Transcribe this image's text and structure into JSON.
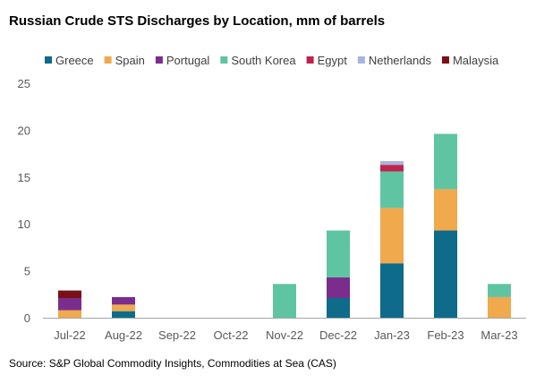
{
  "colors": {
    "Greece": "#0e6b8a",
    "Spain": "#f0a94d",
    "Portugal": "#7b2d8e",
    "South Korea": "#5fc4a2",
    "Egypt": "#c1234f",
    "Netherlands": "#a9b3dd",
    "Malaysia": "#7a1016",
    "axis": "#a6a6a6",
    "text": "#595959"
  },
  "chart_data": {
    "type": "bar",
    "stacked": true,
    "title": "Russian Crude STS Discharges by Location, mm of barrels",
    "xlabel": "",
    "ylabel": "",
    "ylim": [
      0,
      25
    ],
    "yticks": [
      0,
      5,
      10,
      15,
      20,
      25
    ],
    "grid": false,
    "legend_position": "top",
    "categories": [
      "Jul-22",
      "Aug-22",
      "Sep-22",
      "Oct-22",
      "Nov-22",
      "Dec-22",
      "Jan-23",
      "Feb-23",
      "Mar-23"
    ],
    "series": [
      {
        "name": "Greece",
        "values": [
          0,
          0.7,
          0,
          0,
          0,
          2.1,
          5.8,
          9.3,
          0
        ]
      },
      {
        "name": "Spain",
        "values": [
          0.8,
          0.7,
          0,
          0,
          0,
          0,
          5.9,
          4.4,
          2.2
        ]
      },
      {
        "name": "Portugal",
        "values": [
          1.3,
          0.8,
          0,
          0,
          0,
          2.2,
          0,
          0,
          0
        ]
      },
      {
        "name": "South Korea",
        "values": [
          0,
          0,
          0,
          0,
          3.6,
          5.0,
          3.9,
          5.9,
          1.4
        ]
      },
      {
        "name": "Egypt",
        "values": [
          0,
          0,
          0,
          0,
          0,
          0,
          0.7,
          0,
          0
        ]
      },
      {
        "name": "Netherlands",
        "values": [
          0,
          0,
          0,
          0,
          0,
          0,
          0.4,
          0,
          0
        ]
      },
      {
        "name": "Malaysia",
        "values": [
          0.8,
          0,
          0,
          0,
          0,
          0,
          0,
          0,
          0
        ]
      }
    ]
  },
  "source_text": "Source: S&P Global Commodity Insights, Commodities at Sea (CAS)"
}
